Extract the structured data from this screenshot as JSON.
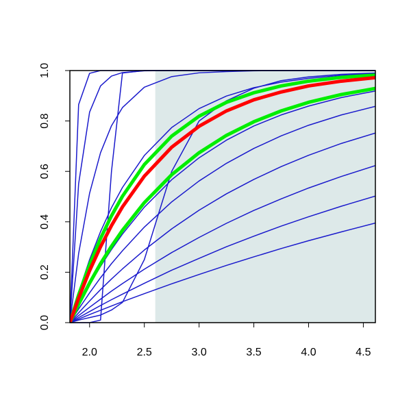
{
  "chart_data": {
    "type": "line",
    "x": [
      1.82,
      1.9,
      2.0,
      2.1,
      2.2,
      2.3,
      2.5,
      2.75,
      3.0,
      3.25,
      3.5,
      3.75,
      4.0,
      4.3,
      4.61
    ],
    "xlim": [
      1.82,
      4.61
    ],
    "ylim": [
      0,
      1
    ],
    "xticks": [
      {
        "value": 2,
        "label": "2.0"
      },
      2.5,
      {
        "value": 3,
        "label": "3.0"
      },
      3.5,
      {
        "value": 4,
        "label": "4.0"
      },
      4.5
    ],
    "yticks": [
      {
        "value": 0,
        "label": "0.0"
      },
      0.2,
      0.4,
      0.6,
      0.8,
      {
        "value": 1,
        "label": "1.0"
      }
    ],
    "shade_x": [
      2.6,
      4.61
    ],
    "shade_color": "#dde9e9",
    "series": [
      {
        "color": "#1a1acc",
        "width": 1.5,
        "values": [
          0,
          0.014,
          0.032,
          0.049,
          0.066,
          0.083,
          0.115,
          0.154,
          0.191,
          0.227,
          0.261,
          0.294,
          0.325,
          0.36,
          0.395
        ]
      },
      {
        "color": "#1a1acc",
        "width": 1.5,
        "values": [
          0,
          0.02,
          0.044,
          0.068,
          0.091,
          0.113,
          0.156,
          0.208,
          0.255,
          0.301,
          0.343,
          0.383,
          0.42,
          0.462,
          0.502
        ]
      },
      {
        "color": "#1a1acc",
        "width": 1.5,
        "values": [
          0,
          0.028,
          0.061,
          0.093,
          0.125,
          0.155,
          0.212,
          0.278,
          0.338,
          0.394,
          0.445,
          0.491,
          0.534,
          0.58,
          0.623
        ]
      },
      {
        "color": "#1a1acc",
        "width": 1.5,
        "values": [
          0,
          0.039,
          0.086,
          0.131,
          0.173,
          0.213,
          0.288,
          0.372,
          0.446,
          0.511,
          0.568,
          0.619,
          0.664,
          0.711,
          0.752
        ]
      },
      {
        "color": "#1a1acc",
        "width": 1.5,
        "values": [
          0,
          0.054,
          0.118,
          0.178,
          0.234,
          0.285,
          0.379,
          0.479,
          0.562,
          0.632,
          0.691,
          0.741,
          0.783,
          0.824,
          0.858
        ]
      },
      {
        "color": "#1a1acc",
        "width": 1.5,
        "values": [
          0,
          0.069,
          0.15,
          0.223,
          0.29,
          0.351,
          0.458,
          0.567,
          0.654,
          0.724,
          0.78,
          0.824,
          0.859,
          0.893,
          0.919
        ]
      },
      {
        "color": "#1a1acc",
        "width": 1.5,
        "values": [
          0,
          0.12,
          0.25,
          0.361,
          0.456,
          0.536,
          0.663,
          0.774,
          0.849,
          0.899,
          0.932,
          0.954,
          0.969,
          0.981,
          0.988
        ]
      },
      {
        "color": "#1a1acc",
        "width": 1.5,
        "values": [
          0,
          0.274,
          0.513,
          0.674,
          0.781,
          0.853,
          0.934,
          0.976,
          0.991,
          0.996,
          0.999,
          1,
          1,
          1,
          1
        ]
      },
      {
        "color": "#1a1acc",
        "width": 1.5,
        "values": [
          0,
          0.551,
          0.835,
          0.939,
          0.978,
          0.992,
          0.999,
          1,
          1,
          1,
          1,
          1,
          1,
          1,
          1
        ]
      },
      {
        "color": "#1a1acc",
        "width": 1.5,
        "values": [
          0,
          0.865,
          0.989,
          1,
          1,
          1,
          1,
          1,
          1,
          1,
          1,
          1,
          1,
          1,
          1
        ]
      },
      {
        "color": "#1a1acc",
        "width": 1.5,
        "values": [
          0,
          0,
          0,
          0.01,
          0.6,
          0.99,
          1,
          1,
          1,
          1,
          1,
          1,
          1,
          1,
          1
        ]
      },
      {
        "color": "#1a1acc",
        "width": 1.5,
        "values": [
          0,
          0.01,
          0.02,
          0.03,
          0.05,
          0.08,
          0.25,
          0.6,
          0.8,
          0.88,
          0.93,
          0.96,
          0.975,
          0.985,
          0.99
        ]
      },
      {
        "color": "#00ee00",
        "width": 5,
        "values": [
          0,
          0.11,
          0.23,
          0.334,
          0.424,
          0.501,
          0.627,
          0.74,
          0.819,
          0.874,
          0.912,
          0.939,
          0.958,
          0.973,
          0.982
        ]
      },
      {
        "color": "#00ee00",
        "width": 5,
        "values": [
          0,
          0.073,
          0.157,
          0.234,
          0.303,
          0.366,
          0.476,
          0.587,
          0.674,
          0.743,
          0.797,
          0.84,
          0.874,
          0.905,
          0.929
        ]
      },
      {
        "color": "#ff0000",
        "width": 5,
        "values": [
          0,
          0.097,
          0.206,
          0.301,
          0.385,
          0.459,
          0.581,
          0.696,
          0.779,
          0.84,
          0.884,
          0.915,
          0.939,
          0.958,
          0.972
        ]
      }
    ]
  }
}
